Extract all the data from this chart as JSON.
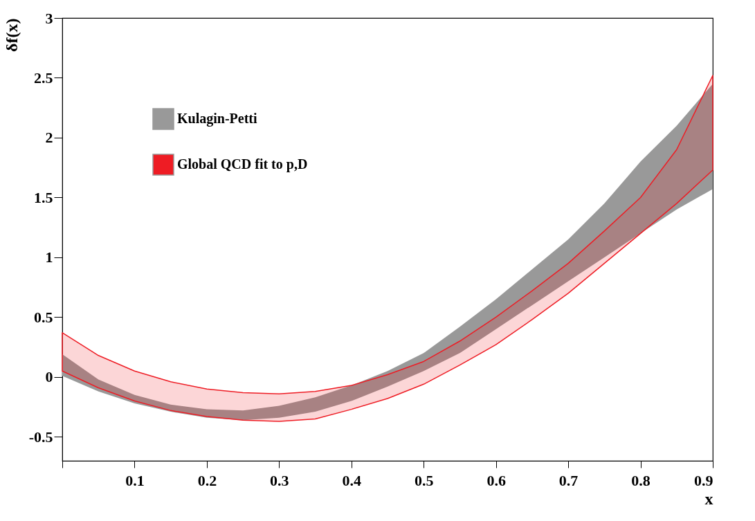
{
  "chart_data": {
    "type": "area",
    "xlabel": "x",
    "ylabel": "δf(x)",
    "x": [
      0,
      0.05,
      0.1,
      0.15,
      0.2,
      0.25,
      0.3,
      0.35,
      0.4,
      0.45,
      0.5,
      0.55,
      0.6,
      0.65,
      0.7,
      0.75,
      0.8,
      0.85,
      0.9
    ],
    "series": [
      {
        "name": "Kulagin-Petti",
        "color": "#999999",
        "values": [
          null,
          null,
          null,
          null,
          null,
          null,
          null,
          null,
          null,
          null,
          null,
          null,
          null,
          null,
          null,
          null,
          null,
          null,
          null
        ],
        "lower": [
          0.01,
          -0.12,
          -0.22,
          -0.29,
          -0.34,
          -0.36,
          -0.34,
          -0.29,
          -0.2,
          -0.08,
          0.05,
          0.2,
          0.4,
          0.6,
          0.8,
          1.0,
          1.2,
          1.4,
          1.57
        ],
        "upper": [
          0.19,
          -0.02,
          -0.15,
          -0.23,
          -0.27,
          -0.28,
          -0.24,
          -0.17,
          -0.07,
          0.05,
          0.2,
          0.42,
          0.65,
          0.9,
          1.15,
          1.45,
          1.8,
          2.1,
          2.45
        ]
      },
      {
        "name": "Global QCD fit to p,D",
        "color": "#ee1c24",
        "values": [
          null,
          null,
          null,
          null,
          null,
          null,
          null,
          null,
          null,
          null,
          null,
          null,
          null,
          null,
          null,
          null,
          null,
          null,
          null
        ],
        "lower": [
          0.05,
          -0.09,
          -0.2,
          -0.28,
          -0.33,
          -0.36,
          -0.37,
          -0.35,
          -0.27,
          -0.18,
          -0.06,
          0.1,
          0.27,
          0.48,
          0.7,
          0.95,
          1.2,
          1.45,
          1.73
        ],
        "upper": [
          0.37,
          0.18,
          0.05,
          -0.04,
          -0.1,
          -0.13,
          -0.14,
          -0.12,
          -0.07,
          0.02,
          0.13,
          0.3,
          0.5,
          0.72,
          0.95,
          1.22,
          1.5,
          1.9,
          2.52
        ]
      }
    ],
    "xlim": [
      0,
      0.9
    ],
    "xticks": [
      {
        "value": 0,
        "label": null
      },
      0.1,
      0.2,
      0.3,
      0.4,
      0.5,
      0.6,
      0.7,
      0.8,
      0.9
    ],
    "ylim": [
      -0.7,
      3
    ],
    "yticks": [
      -0.5,
      0,
      0.5,
      1,
      1.5,
      2,
      2.5,
      3
    ],
    "legend": "top left",
    "grid": false
  }
}
